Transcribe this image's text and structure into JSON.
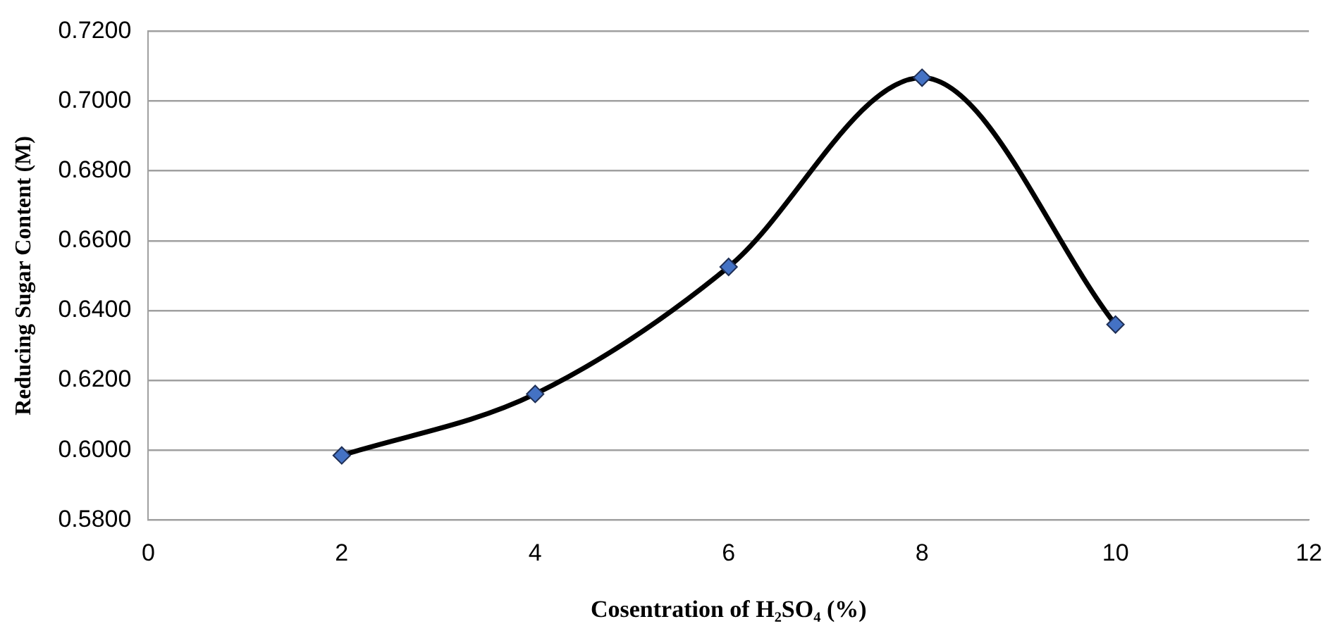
{
  "chart_data": {
    "type": "line",
    "xlabel": "Cosentration of H₂SO₄ (%)",
    "ylabel": "Reducing Sugar Content (M)",
    "x": [
      2,
      4,
      6,
      8,
      10
    ],
    "series": [
      {
        "color": "#000000",
        "values": [
          0.5985,
          0.6161,
          0.6525,
          0.7067,
          0.636
        ]
      }
    ],
    "marker": "diamond",
    "line_style": "solid",
    "grid": "y",
    "legend": false,
    "xlim": [
      0,
      12
    ],
    "xticks": [
      0,
      2,
      4,
      6,
      8,
      10,
      12
    ],
    "ylim": [
      0.58,
      0.72
    ],
    "yticks": [
      {
        "value": 0.58,
        "label": "0.5800"
      },
      {
        "value": 0.6,
        "label": "0.6000"
      },
      {
        "value": 0.62,
        "label": "0.6200"
      },
      {
        "value": 0.64,
        "label": "0.6400"
      },
      {
        "value": 0.66,
        "label": "0.6600"
      },
      {
        "value": 0.68,
        "label": "0.6800"
      },
      {
        "value": 0.7,
        "label": "0.7000"
      },
      {
        "value": 0.72,
        "label": "0.7200"
      }
    ]
  }
}
